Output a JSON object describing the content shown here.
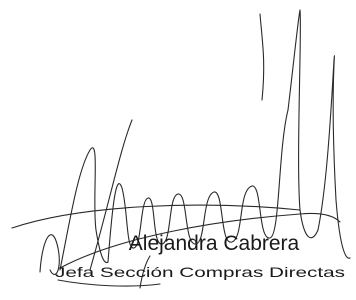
{
  "signature": {
    "name": "Alejandra Cabrera",
    "role": "Jefa Sección Compras Directas"
  }
}
